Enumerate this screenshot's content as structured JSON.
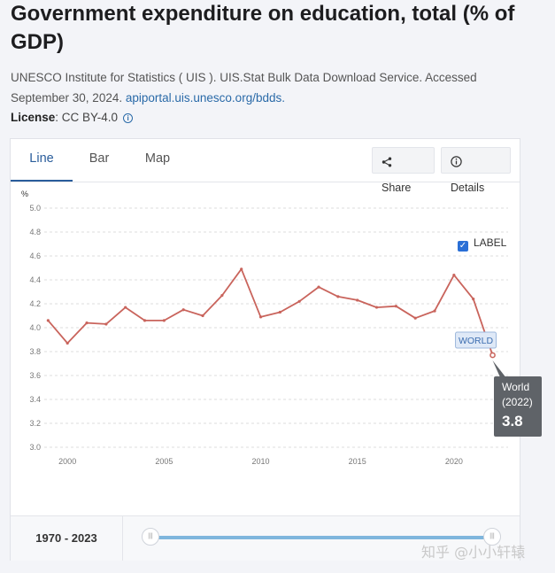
{
  "title": "Government expenditure on education, total (% of GDP)",
  "source": {
    "text": "UNESCO Institute for Statistics ( UIS ). UIS.Stat Bulk Data Download Service. Accessed September 30, 2024.",
    "link": "apiportal.uis.unesco.org/bdds."
  },
  "license": {
    "label": "License",
    "value": ": CC BY-4.0"
  },
  "tabs": [
    {
      "label": "Line",
      "active": true
    },
    {
      "label": "Bar",
      "active": false
    },
    {
      "label": "Map",
      "active": false
    }
  ],
  "buttons": {
    "share": "Share",
    "details": "Details"
  },
  "label_toggle": {
    "text": "LABEL",
    "checked": true
  },
  "range": {
    "text": "1970 - 2023",
    "start": 1970,
    "end": 2023
  },
  "watermark": "知乎 @小小轩辕",
  "colors": {
    "line": "#c9645c",
    "accent": "#2a5d9b",
    "tooltip_bg": "#5f6368"
  },
  "chart_data": {
    "type": "line",
    "ylabel": "%",
    "ylim": [
      3.0,
      5.0
    ],
    "yticks": [
      "3.0",
      "3.2",
      "3.4",
      "3.6",
      "3.8",
      "4.0",
      "4.2",
      "4.4",
      "4.6",
      "4.8",
      "5.0"
    ],
    "xlim": [
      1998.8,
      2022.8
    ],
    "xticks": [
      "2000",
      "2005",
      "2010",
      "2015",
      "2020"
    ],
    "grid": true,
    "series": [
      {
        "name": "World",
        "end_label": "WORLD",
        "x": [
          1999,
          2000,
          2001,
          2002,
          2003,
          2004,
          2005,
          2006,
          2007,
          2008,
          2009,
          2010,
          2011,
          2012,
          2013,
          2014,
          2015,
          2016,
          2017,
          2018,
          2019,
          2020,
          2021,
          2022
        ],
        "values": [
          4.06,
          3.87,
          4.04,
          4.03,
          4.17,
          4.06,
          4.06,
          4.15,
          4.1,
          4.27,
          4.49,
          4.09,
          4.13,
          4.22,
          4.34,
          4.26,
          4.23,
          4.17,
          4.18,
          4.08,
          4.14,
          4.44,
          4.24,
          3.77
        ]
      }
    ],
    "tooltip": {
      "name": "World",
      "year": "(2022)",
      "value": "3.8"
    }
  }
}
